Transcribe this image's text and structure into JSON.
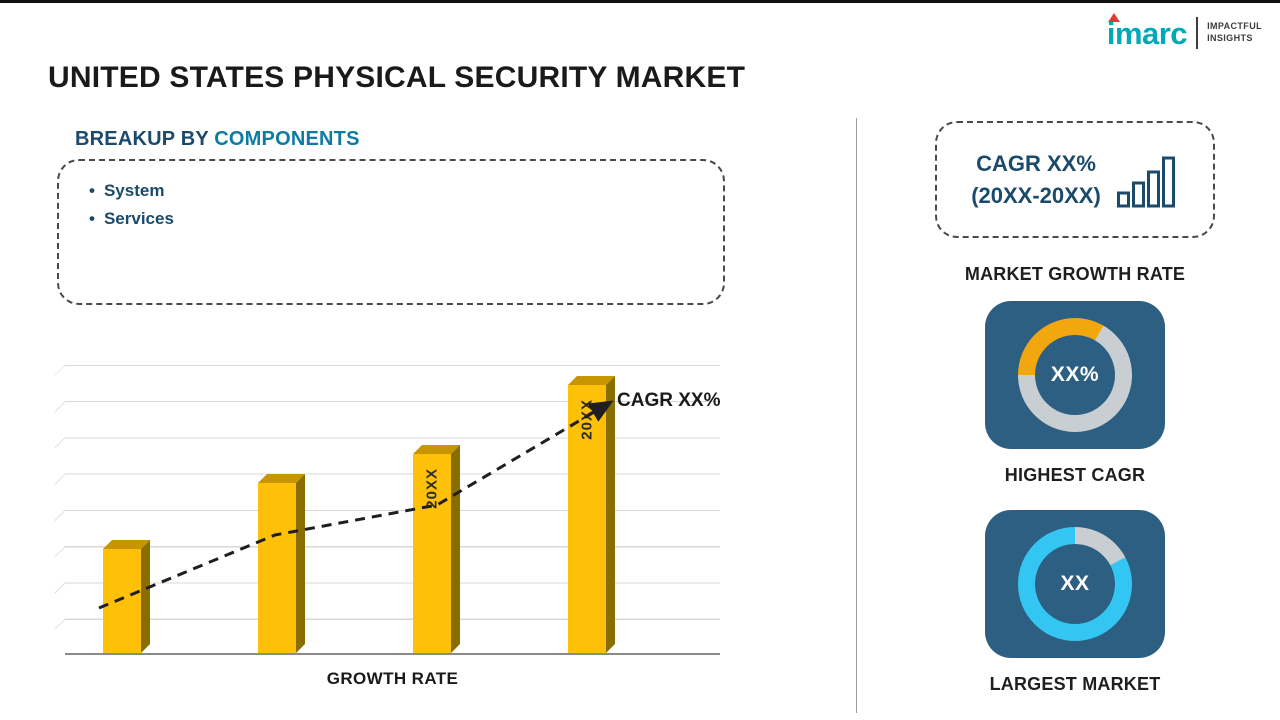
{
  "header": {
    "title": "UNITED STATES PHYSICAL SECURITY MARKET",
    "logo": {
      "brand": "imarc",
      "tagline_line1": "IMPACTFUL",
      "tagline_line2": "INSIGHTS"
    }
  },
  "breakup": {
    "heading_prefix": "BREAKUP BY ",
    "heading_highlight": "COMPONENTS",
    "items": [
      "System",
      "Services"
    ]
  },
  "chart_data": [
    {
      "type": "bar",
      "title": "",
      "categories": [
        "",
        "",
        "20XX",
        "20XX"
      ],
      "values": [
        36,
        59,
        69,
        93
      ],
      "ylim": [
        0,
        100
      ],
      "xlabel": "GROWTH RATE",
      "ylabel": "",
      "grid": true,
      "legend": false,
      "annotation": "CAGR XX%",
      "trendline": "dashed rising arrow across bar tops",
      "bar_color": "#FFC008",
      "units": "relative bar heights (%); no numeric axis shown in image"
    },
    {
      "type": "donut",
      "name": "HIGHEST CAGR",
      "center_text": "XX%",
      "legend": false,
      "segments": [
        {
          "name": "highlight",
          "color": "#F2A70E",
          "pct": 33
        },
        {
          "name": "remainder",
          "color": "#C9CED3",
          "pct": 67
        }
      ]
    },
    {
      "type": "donut",
      "name": "LARGEST MARKET",
      "center_text": "XX",
      "legend": false,
      "segments": [
        {
          "name": "remainder",
          "color": "#C9CED3",
          "pct": 17
        },
        {
          "name": "highlight",
          "color": "#33C6F2",
          "pct": 83
        }
      ]
    }
  ],
  "sidebar": {
    "cagr_box": {
      "line1": "CAGR XX%",
      "line2": "(20XX-20XX)"
    },
    "market_growth_label": "MARKET GROWTH RATE",
    "highest_cagr_label": "HIGHEST CAGR",
    "largest_market_label": "LARGEST MARKET"
  },
  "icons": {
    "logo_triangle": "red triangle dot of imarc logo",
    "bar_chart_icon": "four ascending outlined bars",
    "trend_arrow": "dashed upward arrow"
  },
  "colors": {
    "title_color": "#1A1A1A",
    "navy": "#1B4A6B",
    "teal": "#0E7CA2",
    "gold": "#FFC008",
    "gold_top": "#C69500",
    "gold_side": "#8A6D00",
    "card_blue": "#2D5F82",
    "ring_gray": "#C9CED3",
    "ring_orange": "#F2A70E",
    "ring_cyan": "#33C6F2",
    "logo_teal": "#00A9B7",
    "logo_red": "#E23A3A",
    "divider": "#9E9E9E",
    "grid": "#D8D8D8",
    "arrow": "#1F1F1F"
  }
}
